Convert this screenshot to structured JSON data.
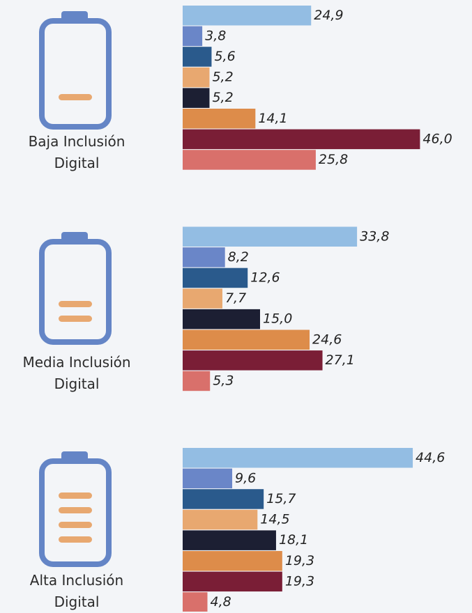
{
  "chart_data": {
    "type": "bar",
    "orientation": "horizontal",
    "categories": [
      "Baja Inclusión Digital",
      "Media Inclusión Digital",
      "Alta Inclusión Digital"
    ],
    "series": [
      {
        "color": "#93bde3",
        "values": [
          24.9,
          33.8,
          44.6
        ],
        "value_labels": [
          "24,9",
          "33,8",
          "44,6"
        ]
      },
      {
        "color": "#6a86c8",
        "values": [
          3.8,
          8.2,
          9.6
        ],
        "value_labels": [
          "3,8",
          "8,2",
          "9,6"
        ]
      },
      {
        "color": "#2a5a8c",
        "values": [
          5.6,
          12.6,
          15.7
        ],
        "value_labels": [
          "5,6",
          "12,6",
          "15,7"
        ]
      },
      {
        "color": "#e8a870",
        "values": [
          5.2,
          7.7,
          14.5
        ],
        "value_labels": [
          "5,2",
          "7,7",
          "14,5"
        ]
      },
      {
        "color": "#1c1f33",
        "values": [
          5.2,
          15.0,
          18.1
        ],
        "value_labels": [
          "5,2",
          "15,0",
          "18,1"
        ]
      },
      {
        "color": "#dd8c4a",
        "values": [
          14.1,
          24.6,
          19.3
        ],
        "value_labels": [
          "14,1",
          "24,6",
          "19,3"
        ]
      },
      {
        "color": "#7a1e36",
        "values": [
          46.0,
          27.1,
          19.3
        ],
        "value_labels": [
          "46,0",
          "27,1",
          "19,3"
        ]
      },
      {
        "color": "#d9706b",
        "values": [
          25.8,
          5.3,
          4.8
        ],
        "value_labels": [
          "25,8",
          "5,3",
          "4,8"
        ]
      }
    ]
  }
}
